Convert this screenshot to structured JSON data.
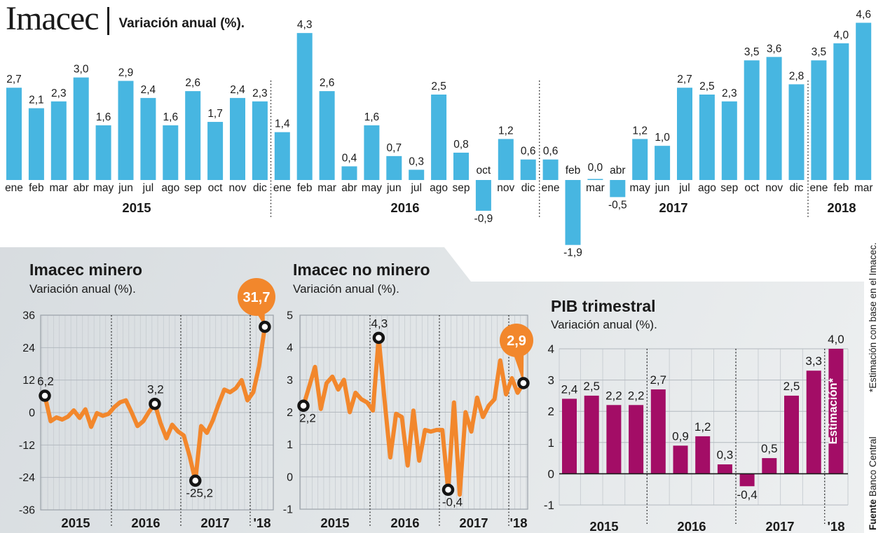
{
  "header": {
    "title": "Imacec",
    "subtitle": "Variación anual (%)."
  },
  "side_notes": {
    "estimation_note": "*Estimación con base en el Imacec.",
    "source_label": "Fuente",
    "source_value": " Banco Central"
  },
  "chart_data": [
    {
      "type": "bar",
      "title": "Imacec",
      "subtitle": "Variación anual (%).",
      "bar_color": "#47b6e1",
      "year_labels": [
        "2015",
        "2016",
        "2017",
        "2018"
      ],
      "categories": [
        "ene",
        "feb",
        "mar",
        "abr",
        "may",
        "jun",
        "jul",
        "ago",
        "sep",
        "oct",
        "nov",
        "dic",
        "ene",
        "feb",
        "mar",
        "abr",
        "may",
        "jun",
        "jul",
        "ago",
        "sep",
        "oct",
        "nov",
        "dic",
        "ene",
        "feb",
        "mar",
        "abr",
        "may",
        "jun",
        "jul",
        "ago",
        "sep",
        "oct",
        "nov",
        "dic",
        "ene",
        "feb",
        "mar"
      ],
      "values": [
        2.7,
        2.1,
        2.3,
        3.0,
        1.6,
        2.9,
        2.4,
        1.6,
        2.6,
        1.7,
        2.4,
        2.3,
        1.4,
        4.3,
        2.6,
        0.4,
        1.6,
        0.7,
        0.3,
        2.5,
        0.8,
        -0.9,
        1.2,
        0.6,
        0.6,
        -1.9,
        0.0,
        -0.5,
        1.2,
        1.0,
        2.7,
        2.5,
        2.3,
        3.5,
        3.6,
        2.8,
        3.5,
        4.0,
        4.6
      ]
    },
    {
      "type": "line",
      "title": "Imacec minero",
      "subtitle": "Variación anual (%).",
      "line_color": "#f2872c",
      "badge_color": "#f2872c",
      "ylim": [
        -36,
        36
      ],
      "yticks": [
        36,
        24,
        12,
        0,
        -12,
        -24,
        -36
      ],
      "year_labels": [
        "2015",
        "2016",
        "2017",
        "'18"
      ],
      "values": [
        6.2,
        -3.2,
        -1.8,
        -2.6,
        -1.5,
        0.8,
        -2.0,
        1.2,
        -5.3,
        -0.2,
        -1.2,
        -0.5,
        2.0,
        3.8,
        4.5,
        0.0,
        -5.0,
        -3.2,
        0.3,
        3.2,
        -4.0,
        -9.5,
        -4.5,
        -7.0,
        -8.5,
        -16.0,
        -25.2,
        -5.0,
        -7.5,
        -3.0,
        3.0,
        8.5,
        7.5,
        9.0,
        12.0,
        4.5,
        7.5,
        17.0,
        31.7
      ],
      "annotations": [
        {
          "index": 0,
          "label": "6,2",
          "placement": "above"
        },
        {
          "index": 19,
          "label": "3,2",
          "placement": "above"
        },
        {
          "index": 26,
          "label": "-25,2",
          "placement": "below"
        },
        {
          "index": 38,
          "label": "31,7",
          "placement": "badge"
        }
      ]
    },
    {
      "type": "line",
      "title": "Imacec no minero",
      "subtitle": "Variación anual (%).",
      "line_color": "#f2872c",
      "badge_color": "#f2872c",
      "ylim": [
        -1,
        5
      ],
      "yticks": [
        5,
        4,
        3,
        2,
        1,
        0,
        -1
      ],
      "year_labels": [
        "2015",
        "2016",
        "2017",
        "'18"
      ],
      "values": [
        2.2,
        2.8,
        3.4,
        2.1,
        2.9,
        3.1,
        2.7,
        3.0,
        2.0,
        2.6,
        2.4,
        2.3,
        2.05,
        4.3,
        2.4,
        0.6,
        1.95,
        1.85,
        0.35,
        2.05,
        0.5,
        1.45,
        1.4,
        1.45,
        1.45,
        -0.4,
        2.3,
        -0.55,
        2.0,
        1.4,
        2.45,
        1.85,
        2.2,
        2.4,
        3.6,
        2.55,
        3.05,
        2.6,
        2.9
      ],
      "annotations": [
        {
          "index": 0,
          "label": "2,2",
          "placement": "below"
        },
        {
          "index": 13,
          "label": "4,3",
          "placement": "above"
        },
        {
          "index": 25,
          "label": "-0,4",
          "placement": "below"
        },
        {
          "index": 38,
          "label": "2,9",
          "placement": "badge"
        }
      ]
    },
    {
      "type": "bar",
      "title": "PIB trimestral",
      "subtitle": "Variación anual (%).",
      "bar_color": "#a30d66",
      "ylim": [
        -1,
        4
      ],
      "yticks": [
        4,
        3,
        2,
        1,
        0,
        -1
      ],
      "year_labels": [
        "2015",
        "2016",
        "2017",
        "'18"
      ],
      "quarters_per_year": [
        4,
        4,
        4,
        1
      ],
      "values": [
        2.4,
        2.5,
        2.2,
        2.2,
        2.7,
        0.9,
        1.2,
        0.3,
        -0.4,
        0.5,
        2.5,
        3.3,
        4.0
      ],
      "estimation_bar_label": "Estimación*"
    }
  ]
}
